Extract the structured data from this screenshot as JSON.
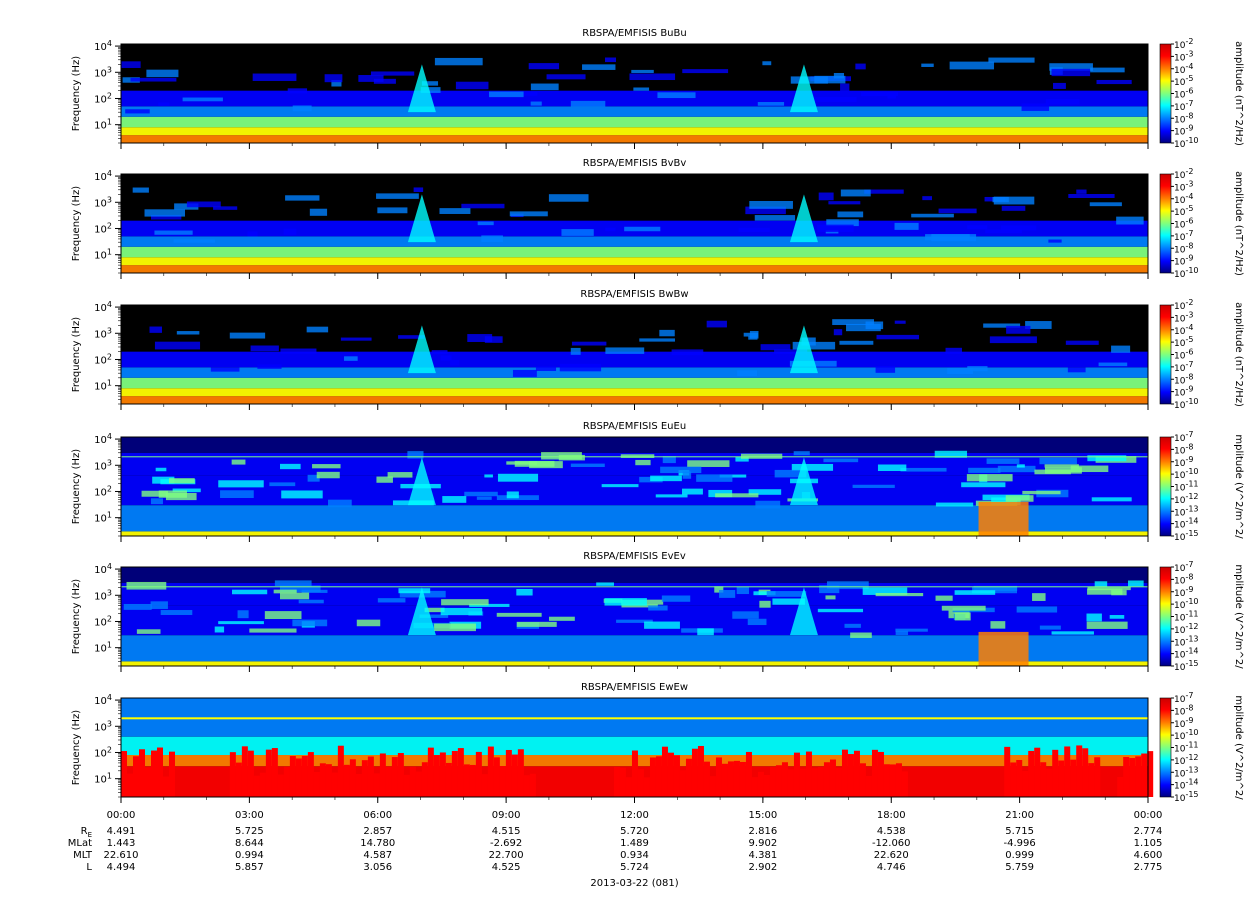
{
  "chart_data": [
    {
      "type": "heatmap",
      "title": "RBSPA/EMFISIS  BuBu",
      "ylabel": "Frequency (Hz)",
      "yscale": "log",
      "ylim": [
        2,
        12000
      ],
      "yticks": [
        "10^1",
        "10^2",
        "10^3",
        "10^4"
      ],
      "colorbar": {
        "label": "amplitude (nT^2/Hz)",
        "scale": "log",
        "range": [
          -10,
          -2
        ],
        "ticks": [
          "10^-2",
          "10^-3",
          "10^-4",
          "10^-5",
          "10^-6",
          "10^-7",
          "10^-8",
          "10^-9",
          "10^-10"
        ]
      }
    },
    {
      "type": "heatmap",
      "title": "RBSPA/EMFISIS  BvBv",
      "ylabel": "Frequency (Hz)",
      "yscale": "log",
      "ylim": [
        2,
        12000
      ],
      "yticks": [
        "10^1",
        "10^2",
        "10^3",
        "10^4"
      ],
      "colorbar": {
        "label": "amplitude (nT^2/Hz)",
        "scale": "log",
        "range": [
          -10,
          -2
        ],
        "ticks": [
          "10^-2",
          "10^-3",
          "10^-4",
          "10^-5",
          "10^-6",
          "10^-7",
          "10^-8",
          "10^-9",
          "10^-10"
        ]
      }
    },
    {
      "type": "heatmap",
      "title": "RBSPA/EMFISIS  BwBw",
      "ylabel": "Frequency (Hz)",
      "yscale": "log",
      "ylim": [
        2,
        12000
      ],
      "yticks": [
        "10^1",
        "10^2",
        "10^3",
        "10^4"
      ],
      "colorbar": {
        "label": "amplitude (nT^2/Hz)",
        "scale": "log",
        "range": [
          -10,
          -2
        ],
        "ticks": [
          "10^-2",
          "10^-3",
          "10^-4",
          "10^-5",
          "10^-6",
          "10^-7",
          "10^-8",
          "10^-9",
          "10^-10"
        ]
      }
    },
    {
      "type": "heatmap",
      "title": "RBSPA/EMFISIS  EuEu",
      "ylabel": "Frequency (Hz)",
      "yscale": "log",
      "ylim": [
        2,
        12000
      ],
      "yticks": [
        "10^1",
        "10^2",
        "10^3",
        "10^4"
      ],
      "colorbar": {
        "label": "mplitude (V^2/m^2/",
        "scale": "log",
        "range": [
          -15,
          -7
        ],
        "ticks": [
          "10^-7",
          "10^-8",
          "10^-9",
          "10^-10",
          "10^-11",
          "10^-12",
          "10^-13",
          "10^-14",
          "10^-15"
        ]
      }
    },
    {
      "type": "heatmap",
      "title": "RBSPA/EMFISIS  EvEv",
      "ylabel": "Frequency (Hz)",
      "yscale": "log",
      "ylim": [
        2,
        12000
      ],
      "yticks": [
        "10^1",
        "10^2",
        "10^3",
        "10^4"
      ],
      "colorbar": {
        "label": "mplitude (V^2/m^2/",
        "scale": "log",
        "range": [
          -15,
          -7
        ],
        "ticks": [
          "10^-7",
          "10^-8",
          "10^-9",
          "10^-10",
          "10^-11",
          "10^-12",
          "10^-13",
          "10^-14",
          "10^-15"
        ]
      }
    },
    {
      "type": "heatmap",
      "title": "RBSPA/EMFISIS  EwEw",
      "ylabel": "Frequency (Hz)",
      "yscale": "log",
      "ylim": [
        2,
        12000
      ],
      "yticks": [
        "10^1",
        "10^2",
        "10^3",
        "10^4"
      ],
      "colorbar": {
        "label": "mplitude (V^2/m^2/",
        "scale": "log",
        "range": [
          -15,
          -7
        ],
        "ticks": [
          "10^-7",
          "10^-8",
          "10^-9",
          "10^-10",
          "10^-11",
          "10^-12",
          "10^-13",
          "10^-14",
          "10^-15"
        ]
      }
    }
  ],
  "x_axis": {
    "xlim": [
      "00:00",
      "00:00"
    ],
    "ticks": [
      "00:00",
      "03:00",
      "06:00",
      "09:00",
      "12:00",
      "15:00",
      "18:00",
      "21:00",
      "00:00"
    ],
    "rows": [
      {
        "label": "RE",
        "values": [
          "4.491",
          "5.725",
          "2.857",
          "4.515",
          "5.720",
          "2.816",
          "4.538",
          "5.715",
          "2.774"
        ]
      },
      {
        "label": "MLat",
        "values": [
          "1.443",
          "8.644",
          "14.780",
          "-2.692",
          "1.489",
          "9.902",
          "-12.060",
          "-4.996",
          "1.105"
        ]
      },
      {
        "label": "MLT",
        "values": [
          "22.610",
          "0.994",
          "4.587",
          "22.700",
          "0.934",
          "4.381",
          "22.620",
          "0.999",
          "4.600"
        ]
      },
      {
        "label": "L",
        "values": [
          "4.494",
          "5.857",
          "3.056",
          "4.525",
          "5.724",
          "2.902",
          "4.746",
          "5.759",
          "2.775"
        ]
      }
    ],
    "date_label": "2013-03-22 (081)"
  },
  "colormap": [
    "#00007f",
    "#0000ff",
    "#007fff",
    "#00ffff",
    "#7fff7f",
    "#ffff00",
    "#ff7f00",
    "#ff0000",
    "#7f0000"
  ]
}
